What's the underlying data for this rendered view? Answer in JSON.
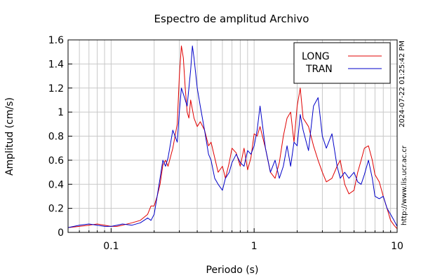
{
  "chart_data": {
    "type": "line",
    "title": "Espectro de amplitud Archivo",
    "xlabel": "Periodo (s)",
    "ylabel": "Amplitud (cm/s)",
    "xscale": "log",
    "xlim": [
      0.05,
      10
    ],
    "ylim": [
      0,
      1.6
    ],
    "xticks": [
      {
        "value": 0.1,
        "label": "0.1"
      },
      {
        "value": 1,
        "label": "1"
      },
      {
        "value": 10,
        "label": "10"
      }
    ],
    "yticks": [
      {
        "value": 0,
        "label": "0"
      },
      {
        "value": 0.2,
        "label": "0.2"
      },
      {
        "value": 0.4,
        "label": "0.4"
      },
      {
        "value": 0.6,
        "label": "0.6"
      },
      {
        "value": 0.8,
        "label": "0.8"
      },
      {
        "value": 1.0,
        "label": "1"
      },
      {
        "value": 1.2,
        "label": "1.2"
      },
      {
        "value": 1.4,
        "label": "1.4"
      },
      {
        "value": 1.6,
        "label": "1.6"
      }
    ],
    "grid": true,
    "legend_position": "top-right",
    "series": [
      {
        "name": "LONG",
        "color": "#e00000",
        "x": [
          0.05,
          0.06,
          0.07,
          0.08,
          0.09,
          0.1,
          0.11,
          0.12,
          0.14,
          0.16,
          0.18,
          0.19,
          0.2,
          0.21,
          0.22,
          0.23,
          0.24,
          0.25,
          0.27,
          0.29,
          0.3,
          0.31,
          0.32,
          0.33,
          0.34,
          0.35,
          0.36,
          0.38,
          0.4,
          0.42,
          0.45,
          0.48,
          0.5,
          0.53,
          0.56,
          0.6,
          0.63,
          0.67,
          0.7,
          0.75,
          0.8,
          0.85,
          0.9,
          0.95,
          1.0,
          1.05,
          1.1,
          1.2,
          1.3,
          1.4,
          1.5,
          1.6,
          1.7,
          1.8,
          1.9,
          2.0,
          2.1,
          2.2,
          2.4,
          2.6,
          2.8,
          3.0,
          3.2,
          3.5,
          3.8,
          4.0,
          4.3,
          4.6,
          5.0,
          5.3,
          5.6,
          5.9,
          6.3,
          6.7,
          7.0,
          7.5,
          8.0,
          8.5,
          9.0,
          9.5,
          10.0
        ],
        "y": [
          0.04,
          0.05,
          0.06,
          0.07,
          0.06,
          0.05,
          0.05,
          0.06,
          0.08,
          0.1,
          0.15,
          0.22,
          0.22,
          0.3,
          0.4,
          0.56,
          0.6,
          0.55,
          0.7,
          0.9,
          1.3,
          1.55,
          1.45,
          1.2,
          1.0,
          0.95,
          1.1,
          0.95,
          0.88,
          0.92,
          0.85,
          0.72,
          0.75,
          0.62,
          0.5,
          0.55,
          0.45,
          0.58,
          0.7,
          0.66,
          0.55,
          0.7,
          0.52,
          0.62,
          0.82,
          0.8,
          0.88,
          0.7,
          0.5,
          0.45,
          0.58,
          0.8,
          0.95,
          1.0,
          0.75,
          1.05,
          1.2,
          0.95,
          0.88,
          0.72,
          0.6,
          0.5,
          0.42,
          0.45,
          0.55,
          0.6,
          0.4,
          0.32,
          0.35,
          0.5,
          0.6,
          0.7,
          0.72,
          0.6,
          0.48,
          0.42,
          0.3,
          0.2,
          0.1,
          0.06,
          0.03
        ]
      },
      {
        "name": "TRAN",
        "color": "#0000c8",
        "x": [
          0.05,
          0.06,
          0.07,
          0.08,
          0.09,
          0.1,
          0.11,
          0.12,
          0.14,
          0.16,
          0.18,
          0.19,
          0.2,
          0.21,
          0.22,
          0.23,
          0.24,
          0.25,
          0.27,
          0.29,
          0.3,
          0.31,
          0.32,
          0.33,
          0.34,
          0.35,
          0.36,
          0.37,
          0.38,
          0.4,
          0.42,
          0.45,
          0.48,
          0.5,
          0.53,
          0.56,
          0.6,
          0.63,
          0.67,
          0.7,
          0.75,
          0.8,
          0.85,
          0.9,
          0.95,
          1.0,
          1.05,
          1.1,
          1.2,
          1.3,
          1.4,
          1.5,
          1.6,
          1.7,
          1.8,
          1.9,
          2.0,
          2.1,
          2.2,
          2.4,
          2.6,
          2.8,
          3.0,
          3.2,
          3.5,
          3.8,
          4.0,
          4.3,
          4.6,
          5.0,
          5.3,
          5.6,
          5.9,
          6.3,
          6.7,
          7.0,
          7.5,
          8.0,
          8.5,
          9.0,
          9.5,
          10.0
        ],
        "y": [
          0.04,
          0.06,
          0.07,
          0.06,
          0.05,
          0.05,
          0.06,
          0.07,
          0.06,
          0.08,
          0.12,
          0.1,
          0.15,
          0.3,
          0.45,
          0.6,
          0.55,
          0.62,
          0.85,
          0.75,
          1.0,
          1.2,
          1.15,
          1.1,
          1.05,
          1.2,
          1.35,
          1.55,
          1.45,
          1.2,
          1.05,
          0.85,
          0.65,
          0.6,
          0.45,
          0.4,
          0.35,
          0.45,
          0.5,
          0.58,
          0.65,
          0.58,
          0.55,
          0.68,
          0.65,
          0.72,
          0.85,
          1.05,
          0.7,
          0.5,
          0.6,
          0.45,
          0.55,
          0.72,
          0.55,
          0.75,
          0.72,
          0.98,
          0.85,
          0.68,
          1.05,
          1.12,
          0.8,
          0.7,
          0.82,
          0.55,
          0.45,
          0.5,
          0.45,
          0.5,
          0.42,
          0.4,
          0.48,
          0.6,
          0.45,
          0.3,
          0.28,
          0.3,
          0.2,
          0.15,
          0.1,
          0.05
        ]
      }
    ]
  },
  "side_text": {
    "timestamp": "2024-07-22 01:25:42 PM",
    "url": "http://www.lis.ucr.ac.cr"
  }
}
